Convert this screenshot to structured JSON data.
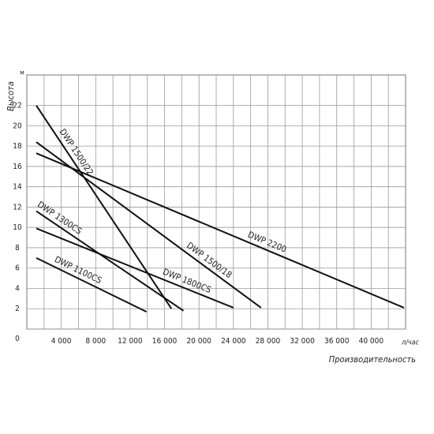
{
  "chart_data": {
    "type": "line",
    "y_label": "Высота",
    "x_label": "Производительность",
    "y_unit": "м",
    "x_unit": "л/час",
    "xlim": [
      0,
      44000
    ],
    "ylim": [
      0,
      25
    ],
    "xticks": [
      {
        "value": 4000,
        "label": "4 000"
      },
      {
        "value": 8000,
        "label": "8 000"
      },
      {
        "value": 12000,
        "label": "12 000"
      },
      {
        "value": 16000,
        "label": "16 000"
      },
      {
        "value": 20000,
        "label": "20 000"
      },
      {
        "value": 24000,
        "label": "24 000"
      },
      {
        "value": 28000,
        "label": "28 000"
      },
      {
        "value": 32000,
        "label": "32 000"
      },
      {
        "value": 36000,
        "label": "36 000"
      },
      {
        "value": 40000,
        "label": "40 000"
      }
    ],
    "yticks": [
      0,
      2,
      4,
      6,
      8,
      10,
      12,
      14,
      16,
      18,
      20,
      22
    ],
    "grid": true,
    "series": [
      {
        "name": "DWP 1500/22",
        "color": "#111111",
        "x": [
          1100,
          16800
        ],
        "values": [
          22,
          2
        ]
      },
      {
        "name": "DWP 1500/18",
        "color": "#111111",
        "x": [
          1100,
          27200
        ],
        "values": [
          18.4,
          2.1
        ]
      },
      {
        "name": "DWP 2200",
        "color": "#111111",
        "x": [
          1100,
          43800
        ],
        "values": [
          17.3,
          2.1
        ]
      },
      {
        "name": "DWP 1300CS",
        "color": "#111111",
        "x": [
          1100,
          18200
        ],
        "values": [
          11.6,
          1.8
        ]
      },
      {
        "name": "DWP 1800CS",
        "color": "#111111",
        "x": [
          1100,
          24000
        ],
        "values": [
          9.9,
          2.1
        ]
      },
      {
        "name": "DWP 1100CS",
        "color": "#111111",
        "x": [
          1100,
          13900
        ],
        "values": [
          7.0,
          1.7
        ]
      }
    ]
  }
}
